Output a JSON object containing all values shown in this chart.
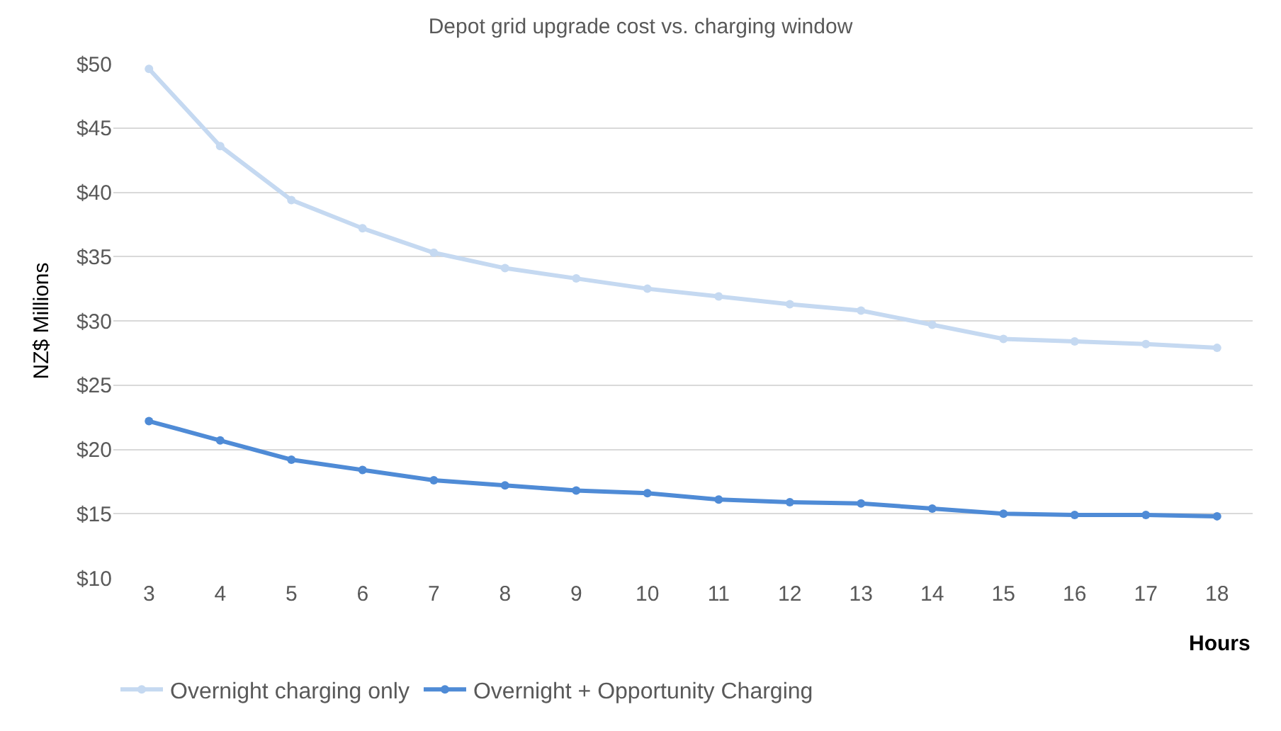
{
  "chart_data": {
    "type": "line",
    "title": "Depot grid upgrade cost vs. charging window",
    "xlabel": "Hours",
    "ylabel": "NZ$ Millions",
    "x": [
      3,
      4,
      5,
      6,
      7,
      8,
      9,
      10,
      11,
      12,
      13,
      14,
      15,
      16,
      17,
      18
    ],
    "series": [
      {
        "name": "Overnight charging only",
        "color": "#c5d9f1",
        "values": [
          49.6,
          43.6,
          39.4,
          37.2,
          35.3,
          34.1,
          33.3,
          32.5,
          31.9,
          31.3,
          30.8,
          29.7,
          28.6,
          28.4,
          28.2,
          27.9
        ]
      },
      {
        "name": "Overnight + Opportunity Charging",
        "color": "#4f8bd6",
        "values": [
          22.2,
          20.7,
          19.2,
          18.4,
          17.6,
          17.2,
          16.8,
          16.6,
          16.1,
          15.9,
          15.8,
          15.4,
          15.0,
          14.9,
          14.9,
          14.8
        ]
      }
    ],
    "xlim": [
      2.5,
      18.5
    ],
    "xticks": [
      3,
      4,
      5,
      6,
      7,
      8,
      9,
      10,
      11,
      12,
      13,
      14,
      15,
      16,
      17,
      18
    ],
    "ylim": [
      10,
      50
    ],
    "yticks": [
      {
        "value": 10,
        "label": "$10"
      },
      {
        "value": 15,
        "label": "$15"
      },
      {
        "value": 20,
        "label": "$20"
      },
      {
        "value": 25,
        "label": "$25"
      },
      {
        "value": 30,
        "label": "$30"
      },
      {
        "value": 35,
        "label": "$35"
      },
      {
        "value": 40,
        "label": "$40"
      },
      {
        "value": 45,
        "label": "$45"
      },
      {
        "value": 50,
        "label": "$50"
      }
    ],
    "grid": "y",
    "legend": "bottom left",
    "marker": "circle",
    "line_style": "solid"
  }
}
